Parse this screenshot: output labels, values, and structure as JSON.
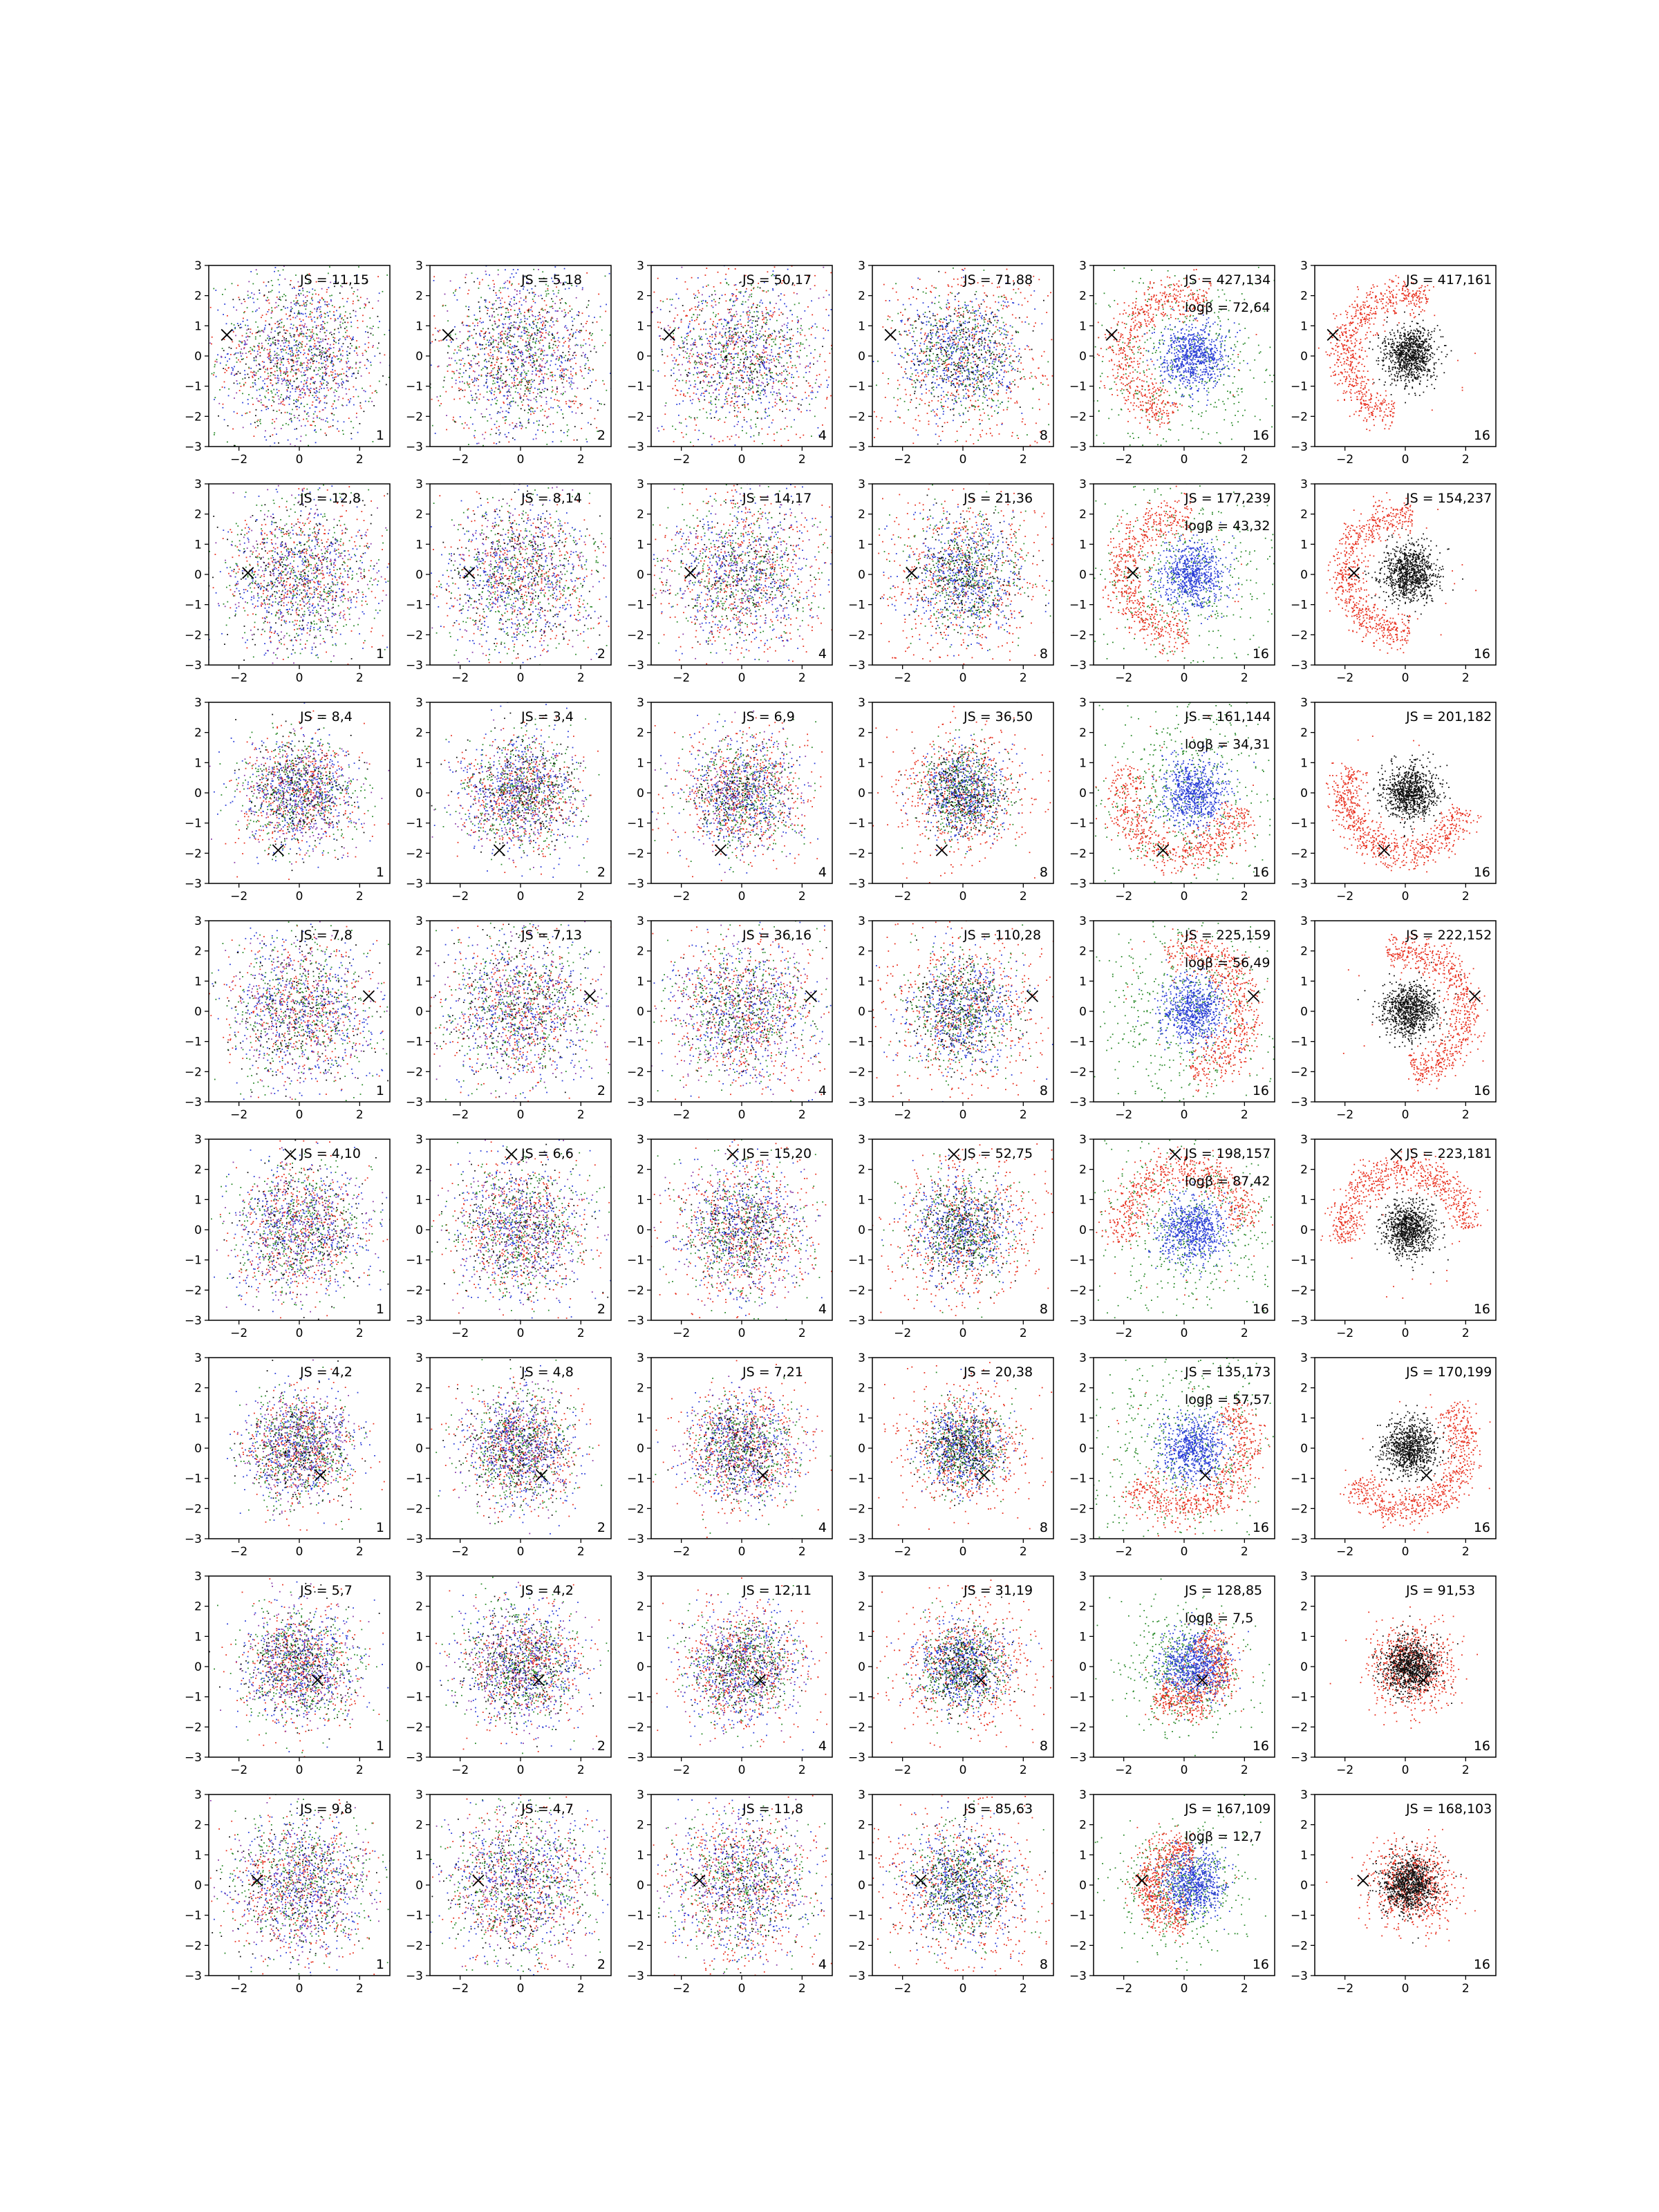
{
  "chart_data": {
    "type": "scatter",
    "grid": false,
    "legend": "none",
    "rows": 8,
    "cols": 6,
    "xlim": [
      -3,
      3
    ],
    "ylim": [
      -3,
      3
    ],
    "x_ticks": [
      "−2",
      "0",
      "2"
    ],
    "y_ticks": [
      "−3",
      "−2",
      "−1",
      "0",
      "1",
      "2",
      "3"
    ],
    "colors": {
      "red": "#e8301f",
      "green": "#2a8a2a",
      "blue": "#2a3ed8",
      "purple": "#8a3aa8",
      "black": "#101010"
    },
    "rows_data": [
      {
        "marker": [
          -2.4,
          0.7
        ],
        "panels": [
          {
            "js": "JS = 11,15",
            "logb": "",
            "k": "1"
          },
          {
            "js": "JS = 5,18",
            "logb": "",
            "k": "2"
          },
          {
            "js": "JS = 50,17",
            "logb": "",
            "k": "4"
          },
          {
            "js": "JS = 71,88",
            "logb": "",
            "k": "8"
          },
          {
            "js": "JS = 427,134",
            "logb": "logβ = 72,64",
            "k": "16"
          },
          {
            "js": "JS = 417,161",
            "logb": "",
            "k": "16"
          }
        ]
      },
      {
        "marker": [
          -1.7,
          0.05
        ],
        "panels": [
          {
            "js": "JS = 12,8",
            "logb": "",
            "k": "1"
          },
          {
            "js": "JS = 8,14",
            "logb": "",
            "k": "2"
          },
          {
            "js": "JS = 14,17",
            "logb": "",
            "k": "4"
          },
          {
            "js": "JS = 21,36",
            "logb": "",
            "k": "8"
          },
          {
            "js": "JS = 177,239",
            "logb": "logβ = 43,32",
            "k": "16"
          },
          {
            "js": "JS = 154,237",
            "logb": "",
            "k": "16"
          }
        ]
      },
      {
        "marker": [
          -0.7,
          -1.9
        ],
        "panels": [
          {
            "js": "JS = 8,4",
            "logb": "",
            "k": "1"
          },
          {
            "js": "JS = 3,4",
            "logb": "",
            "k": "2"
          },
          {
            "js": "JS = 6,9",
            "logb": "",
            "k": "4"
          },
          {
            "js": "JS = 36,50",
            "logb": "",
            "k": "8"
          },
          {
            "js": "JS = 161,144",
            "logb": "logβ = 34,31",
            "k": "16"
          },
          {
            "js": "JS = 201,182",
            "logb": "",
            "k": "16"
          }
        ]
      },
      {
        "marker": [
          2.3,
          0.5
        ],
        "panels": [
          {
            "js": "JS = 7,8",
            "logb": "",
            "k": "1"
          },
          {
            "js": "JS = 7,13",
            "logb": "",
            "k": "2"
          },
          {
            "js": "JS = 36,16",
            "logb": "",
            "k": "4"
          },
          {
            "js": "JS = 110,28",
            "logb": "",
            "k": "8"
          },
          {
            "js": "JS = 225,159",
            "logb": "logβ = 56,49",
            "k": "16"
          },
          {
            "js": "JS = 222,152",
            "logb": "",
            "k": "16"
          }
        ]
      },
      {
        "marker": [
          -0.3,
          2.5
        ],
        "panels": [
          {
            "js": "JS = 4,10",
            "logb": "",
            "k": "1"
          },
          {
            "js": "JS = 6,6",
            "logb": "",
            "k": "2"
          },
          {
            "js": "JS = 15,20",
            "logb": "",
            "k": "4"
          },
          {
            "js": "JS = 52,75",
            "logb": "",
            "k": "8"
          },
          {
            "js": "JS = 198,157",
            "logb": "logβ = 87,42",
            "k": "16"
          },
          {
            "js": "JS = 223,181",
            "logb": "",
            "k": "16"
          }
        ]
      },
      {
        "marker": [
          0.7,
          -0.9
        ],
        "panels": [
          {
            "js": "JS = 4,2",
            "logb": "",
            "k": "1"
          },
          {
            "js": "JS = 4,8",
            "logb": "",
            "k": "2"
          },
          {
            "js": "JS = 7,21",
            "logb": "",
            "k": "4"
          },
          {
            "js": "JS = 20,38",
            "logb": "",
            "k": "8"
          },
          {
            "js": "JS = 135,173",
            "logb": "logβ = 57,57",
            "k": "16"
          },
          {
            "js": "JS = 170,199",
            "logb": "",
            "k": "16"
          }
        ]
      },
      {
        "marker": [
          0.6,
          -0.45
        ],
        "panels": [
          {
            "js": "JS = 5,7",
            "logb": "",
            "k": "1"
          },
          {
            "js": "JS = 4,2",
            "logb": "",
            "k": "2"
          },
          {
            "js": "JS = 12,11",
            "logb": "",
            "k": "4"
          },
          {
            "js": "JS = 31,19",
            "logb": "",
            "k": "8"
          },
          {
            "js": "JS = 128,85",
            "logb": "logβ = 7,5",
            "k": "16"
          },
          {
            "js": "JS = 91,53",
            "logb": "",
            "k": "16"
          }
        ]
      },
      {
        "marker": [
          -1.4,
          0.15
        ],
        "panels": [
          {
            "js": "JS = 9,8",
            "logb": "",
            "k": "1"
          },
          {
            "js": "JS = 4,7",
            "logb": "",
            "k": "2"
          },
          {
            "js": "JS = 11,8",
            "logb": "",
            "k": "4"
          },
          {
            "js": "JS = 85,63",
            "logb": "",
            "k": "8"
          },
          {
            "js": "JS = 167,109",
            "logb": "logβ = 12,7",
            "k": "16"
          },
          {
            "js": "JS = 168,103",
            "logb": "",
            "k": "16"
          }
        ]
      }
    ]
  }
}
